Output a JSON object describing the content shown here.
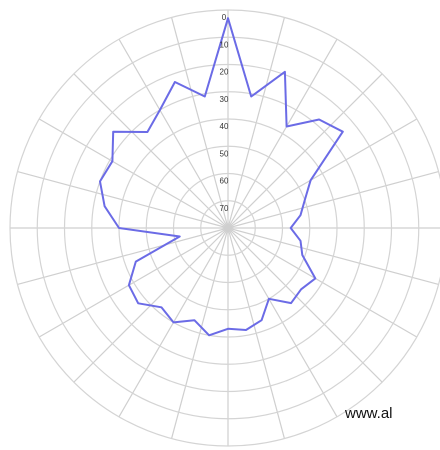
{
  "chart_data": {
    "type": "polar-line",
    "theta": [
      0,
      10,
      20,
      30,
      40,
      50,
      60,
      70,
      80,
      90,
      100,
      110,
      120,
      130,
      140,
      150,
      160,
      170,
      180,
      190,
      200,
      210,
      220,
      230,
      240,
      250,
      260,
      270,
      280,
      290,
      300,
      310,
      320,
      330,
      340,
      350
    ],
    "series": [
      {
        "color": "#6b6be6",
        "values": [
          3,
          31,
          19,
          37,
          28,
          25,
          45,
          50,
          53,
          57,
          53,
          51,
          43,
          45,
          44,
          50,
          44,
          42,
          43,
          40,
          44,
          40,
          42,
          37,
          38,
          44,
          62,
          40,
          34,
          30,
          31,
          25,
          34,
          30,
          23,
          31
        ]
      }
    ],
    "rlim": [
      80,
      0
    ],
    "rticks": [
      0,
      10,
      20,
      30,
      40,
      50,
      60,
      70
    ],
    "grid": true,
    "watermark": "www.al"
  }
}
